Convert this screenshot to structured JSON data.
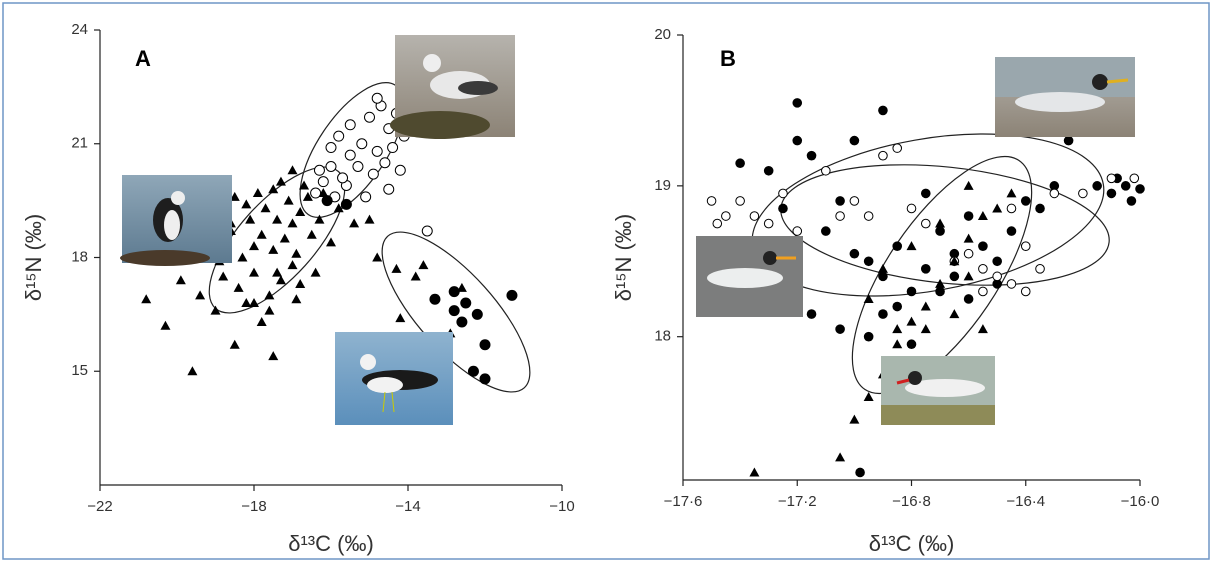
{
  "chart_data": [
    {
      "type": "scatter",
      "title": "A",
      "x_label": "δ¹³C (‰)",
      "y_label": "δ¹⁵N (‰)",
      "xlim": [
        -22,
        -10
      ],
      "ylim": [
        12,
        24
      ],
      "xticks": [
        {
          "value": -22,
          "label": "−22"
        },
        {
          "value": -18,
          "label": "−18"
        },
        {
          "value": -14,
          "label": "−14"
        },
        {
          "value": -10,
          "label": "−10"
        }
      ],
      "yticks": [
        15,
        18,
        21,
        24
      ],
      "series": [
        {
          "marker": "triangle",
          "color": "#000000",
          "x": [
            -20.8,
            -20.3,
            -19.6,
            -19.9,
            -19.4,
            -19.0,
            -18.8,
            -18.5,
            -17.5,
            -17.8,
            -18.2,
            -18.4,
            -18.0,
            -17.6,
            -17.3,
            -17.0,
            -18.3,
            -18.0,
            -17.8,
            -17.5,
            -17.2,
            -17.0,
            -16.8,
            -16.6,
            -17.4,
            -17.7,
            -18.1,
            -18.6,
            -18.2,
            -17.9,
            -17.5,
            -17.1,
            -16.9,
            -16.5,
            -16.3,
            -16.7,
            -17.3,
            -18.5,
            -18.8,
            -18.9,
            -17.6,
            -16.9,
            -16.4,
            -16.0,
            -15.8,
            -16.2,
            -17.0,
            -15.4,
            -15.0,
            -14.8,
            -13.6,
            -14.3,
            -13.8,
            -14.2,
            -12.6,
            -12.9,
            -18.0,
            -17.4,
            -16.8,
            -18.6
          ],
          "values": [
            16.9,
            16.2,
            15.0,
            17.4,
            17.0,
            16.6,
            17.5,
            15.7,
            15.4,
            16.3,
            16.8,
            17.2,
            17.6,
            17.0,
            17.4,
            17.8,
            18.0,
            18.3,
            18.6,
            18.2,
            18.5,
            18.9,
            19.2,
            19.6,
            19.0,
            19.3,
            19.0,
            18.7,
            19.4,
            19.7,
            19.8,
            19.5,
            18.1,
            18.6,
            19.0,
            19.9,
            20.0,
            19.6,
            18.3,
            17.9,
            16.6,
            16.9,
            17.6,
            18.4,
            19.3,
            19.7,
            20.3,
            18.9,
            19.0,
            18.0,
            17.8,
            17.7,
            17.5,
            16.4,
            17.2,
            16.0,
            16.8,
            17.6,
            17.3,
            18.9
          ]
        },
        {
          "marker": "circle-open",
          "color": "#000000",
          "x": [
            -16.3,
            -16.0,
            -15.8,
            -15.5,
            -15.2,
            -15.0,
            -14.7,
            -14.5,
            -14.3,
            -14.1,
            -14.8,
            -15.3,
            -15.6,
            -15.9,
            -16.4,
            -16.2,
            -14.6,
            -14.9,
            -15.1,
            -14.4,
            -14.0,
            -14.8,
            -15.5,
            -16.0,
            -14.2,
            -13.9,
            -13.6,
            -14.5,
            -15.7,
            -13.5
          ],
          "values": [
            20.3,
            20.9,
            21.2,
            21.5,
            21.0,
            21.7,
            22.0,
            21.4,
            21.8,
            21.2,
            20.8,
            20.4,
            19.9,
            19.6,
            19.7,
            20.0,
            20.5,
            20.2,
            19.6,
            20.9,
            21.5,
            22.2,
            20.7,
            20.4,
            20.3,
            21.9,
            22.2,
            19.8,
            20.1,
            18.7
          ]
        },
        {
          "marker": "circle",
          "color": "#000000",
          "x": [
            -13.3,
            -12.8,
            -12.5,
            -12.2,
            -12.6,
            -12.0,
            -11.3,
            -12.3,
            -12.0,
            -12.8,
            -15.6,
            -16.1
          ],
          "values": [
            16.9,
            17.1,
            16.8,
            16.5,
            16.3,
            15.7,
            17.0,
            15.0,
            14.8,
            16.6,
            19.4,
            19.5
          ]
        }
      ]
    },
    {
      "type": "scatter",
      "title": "B",
      "x_label": "δ¹³C (‰)",
      "y_label": "δ¹⁵N (‰)",
      "xlim": [
        -17.6,
        -16.0
      ],
      "ylim": [
        17.05,
        20
      ],
      "xticks": [
        {
          "value": -17.6,
          "label": "−17·6"
        },
        {
          "value": -17.2,
          "label": "−17·2"
        },
        {
          "value": -16.8,
          "label": "−16·8"
        },
        {
          "value": -16.4,
          "label": "−16·4"
        },
        {
          "value": -16.0,
          "label": "−16·0"
        }
      ],
      "yticks": [
        18,
        19,
        20
      ],
      "series": [
        {
          "marker": "circle",
          "color": "#000000",
          "x": [
            -17.2,
            -17.0,
            -16.9,
            -17.4,
            -17.3,
            -17.2,
            -17.15,
            -17.05,
            -17.1,
            -17.0,
            -16.95,
            -16.85,
            -16.8,
            -16.75,
            -16.7,
            -16.65,
            -16.6,
            -16.55,
            -16.5,
            -16.45,
            -16.4,
            -16.35,
            -16.3,
            -16.25,
            -16.15,
            -16.1,
            -16.05,
            -16.0,
            -16.03,
            -16.08,
            -17.2,
            -17.15,
            -17.05,
            -16.95,
            -16.9,
            -16.85,
            -16.8,
            -16.7,
            -16.65,
            -16.6,
            -16.98,
            -16.75,
            -16.5,
            -17.25,
            -16.9
          ],
          "values": [
            19.55,
            19.3,
            19.5,
            19.15,
            19.1,
            19.3,
            19.2,
            18.9,
            18.7,
            18.55,
            18.5,
            18.6,
            18.3,
            18.45,
            18.7,
            18.55,
            18.8,
            18.6,
            18.5,
            18.7,
            18.9,
            18.85,
            19.0,
            19.3,
            19.0,
            18.95,
            19.0,
            18.98,
            18.9,
            19.05,
            18.25,
            18.15,
            18.05,
            18.0,
            18.15,
            18.2,
            17.95,
            18.3,
            18.4,
            18.25,
            17.1,
            18.95,
            18.35,
            18.85,
            18.4
          ]
        },
        {
          "marker": "circle-open",
          "color": "#000000",
          "x": [
            -17.5,
            -17.48,
            -17.4,
            -17.35,
            -17.3,
            -17.25,
            -17.2,
            -17.1,
            -17.0,
            -16.95,
            -16.9,
            -16.85,
            -16.8,
            -16.75,
            -17.05,
            -16.6,
            -16.55,
            -16.5,
            -16.45,
            -16.4,
            -16.35,
            -16.3,
            -16.2,
            -16.4,
            -16.45,
            -16.1,
            -16.02,
            -17.45,
            -16.65,
            -16.55
          ],
          "values": [
            18.9,
            18.75,
            18.9,
            18.8,
            18.75,
            18.95,
            18.7,
            19.1,
            18.9,
            18.8,
            19.2,
            19.25,
            18.85,
            18.75,
            18.8,
            18.55,
            18.45,
            18.4,
            18.35,
            18.3,
            18.45,
            18.95,
            18.95,
            18.6,
            18.85,
            19.05,
            19.05,
            18.8,
            18.5,
            18.3
          ]
        },
        {
          "marker": "triangle",
          "color": "#000000",
          "x": [
            -17.35,
            -17.05,
            -17.0,
            -16.95,
            -16.9,
            -16.85,
            -16.8,
            -16.75,
            -16.7,
            -16.65,
            -16.6,
            -16.55,
            -16.5,
            -16.45,
            -16.6,
            -16.7,
            -16.8,
            -16.9,
            -16.75,
            -16.65,
            -16.55,
            -16.85,
            -16.95,
            -16.6
          ],
          "values": [
            17.1,
            17.2,
            17.45,
            17.6,
            17.75,
            18.05,
            18.1,
            18.2,
            18.35,
            18.5,
            18.65,
            18.8,
            18.85,
            18.95,
            19.0,
            18.75,
            18.6,
            18.45,
            18.05,
            18.15,
            18.05,
            17.95,
            18.25,
            18.4
          ]
        }
      ]
    }
  ]
}
